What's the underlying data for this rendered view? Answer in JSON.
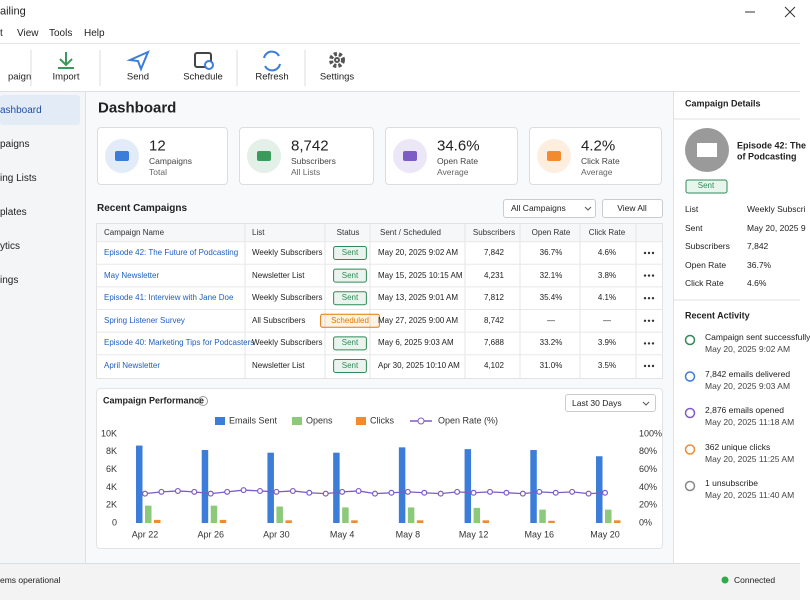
{
  "window": {
    "title": "ailing"
  },
  "menu": [
    "t",
    "View",
    "Tools",
    "Help"
  ],
  "toolbar": [
    "paign",
    "Import",
    "Send",
    "Schedule",
    "Refresh",
    "Settings"
  ],
  "sidebar": [
    "ashboard",
    "paigns",
    "ing Lists",
    "plates",
    "ytics",
    "ings"
  ],
  "dashboard": {
    "title": "Dashboard",
    "cards": [
      {
        "value": "12",
        "label": "Campaigns",
        "sub": "Total",
        "color": "#3b7dd8"
      },
      {
        "value": "8,742",
        "label": "Subscribers",
        "sub": "All Lists",
        "color": "#3a9a5b"
      },
      {
        "value": "34.6%",
        "label": "Open Rate",
        "sub": "Average",
        "color": "#7d5cc6"
      },
      {
        "value": "4.2%",
        "label": "Click Rate",
        "sub": "Average",
        "color": "#f28a30"
      }
    ]
  },
  "recent": {
    "title": "Recent Campaigns",
    "filter": "All Campaigns",
    "view_all": "View All",
    "columns": [
      "Campaign Name",
      "List",
      "Status",
      "Sent / Scheduled",
      "Subscribers",
      "Open Rate",
      "Click Rate"
    ],
    "rows": [
      {
        "cells": [
          "Episode 42: The Future of Podcasting",
          "Weekly Subscribers",
          "Sent",
          "May 20, 2025 9:02 AM",
          "7,842",
          "36.7%",
          "4.6%"
        ],
        "status_color": "#2e8b57"
      },
      {
        "cells": [
          "May Newsletter",
          "Newsletter List",
          "Sent",
          "May 15, 2025 10:15 AM",
          "4,231",
          "32.1%",
          "3.8%"
        ],
        "status_color": "#2e8b57"
      },
      {
        "cells": [
          "Episode 41: Interview with Jane Doe",
          "Weekly Subscribers",
          "Sent",
          "May 13, 2025 9:01 AM",
          "7,812",
          "35.4%",
          "4.1%"
        ],
        "status_color": "#2e8b57"
      },
      {
        "cells": [
          "Spring Listener Survey",
          "All Subscribers",
          "Scheduled",
          "May 27, 2025 9:00 AM",
          "8,742",
          "—",
          "—"
        ],
        "status_color": "#e07b00"
      },
      {
        "cells": [
          "Episode 40: Marketing Tips for Podcasters",
          "Weekly Subscribers",
          "Sent",
          "May 6, 2025 9:03 AM",
          "7,688",
          "33.2%",
          "3.9%"
        ],
        "status_color": "#2e8b57"
      },
      {
        "cells": [
          "April Newsletter",
          "Newsletter List",
          "Sent",
          "Apr 30, 2025 10:10 AM",
          "4,102",
          "31.0%",
          "3.5%"
        ],
        "status_color": "#2e8b57"
      }
    ]
  },
  "chart_controls": {
    "range": "Last 30 Days"
  },
  "chart_data": {
    "type": "bar",
    "title": "Campaign Performance",
    "categories": [
      "Apr 22",
      null,
      null,
      null,
      "Apr 26",
      null,
      null,
      null,
      "Apr 30",
      null,
      null,
      null,
      "May 4",
      null,
      null,
      null,
      "May 8",
      null,
      null,
      null,
      "May 12",
      null,
      null,
      null,
      "May 16",
      null,
      null,
      null,
      "May 20"
    ],
    "series": [
      {
        "name": "Emails Sent",
        "color": "#3b7dd8",
        "values": [
          8700,
          null,
          null,
          null,
          8200,
          null,
          null,
          null,
          7900,
          null,
          null,
          null,
          7900,
          null,
          null,
          null,
          8500,
          null,
          null,
          null,
          8300,
          null,
          null,
          null,
          8200,
          null,
          null,
          null,
          7500
        ]
      },
      {
        "name": "Opens",
        "color": "#8cc97a",
        "values": [
          1950,
          null,
          null,
          null,
          1950,
          null,
          null,
          null,
          1850,
          null,
          null,
          null,
          1750,
          null,
          null,
          null,
          1750,
          null,
          null,
          null,
          1700,
          null,
          null,
          null,
          1500,
          null,
          null,
          null,
          1500
        ]
      },
      {
        "name": "Clicks",
        "color": "#f28a30",
        "values": [
          350,
          null,
          null,
          null,
          350,
          null,
          null,
          null,
          300,
          null,
          null,
          null,
          300,
          null,
          null,
          null,
          300,
          null,
          null,
          null,
          300,
          null,
          null,
          null,
          250,
          null,
          null,
          null,
          300
        ]
      },
      {
        "name": "Open Rate (%)",
        "color": "#7d5cc6",
        "type": "line",
        "axis": "y2",
        "values": [
          33,
          35,
          36,
          35,
          33,
          35,
          37,
          36,
          35,
          36,
          34,
          33,
          35,
          36,
          33,
          34,
          35,
          34,
          33,
          35,
          34,
          35,
          34,
          33,
          35,
          34,
          35,
          33,
          34
        ]
      }
    ],
    "ylim": [
      0,
      10000
    ],
    "yticks": [
      0,
      {
        "value": 2000,
        "label": "2K"
      },
      {
        "value": 4000,
        "label": "4K"
      },
      {
        "value": 6000,
        "label": "6K"
      },
      {
        "value": 8000,
        "label": "8K"
      },
      {
        "value": 10000,
        "label": "10K"
      }
    ],
    "y2lim": [
      0,
      100
    ],
    "y2ticks": [
      {
        "value": 0,
        "label": "0%"
      },
      {
        "value": 20,
        "label": "20%"
      },
      {
        "value": 40,
        "label": "40%"
      },
      {
        "value": 60,
        "label": "60%"
      },
      {
        "value": 80,
        "label": "80%"
      },
      {
        "value": 100,
        "label": "100%"
      }
    ],
    "grid": false,
    "legend": "top"
  },
  "details": {
    "title": "Campaign Details",
    "name_lines": [
      "Episode 42: The",
      "of Podcasting"
    ],
    "status": "Sent",
    "rows": [
      [
        "List",
        "Weekly Subscri"
      ],
      [
        "Sent",
        "May 20, 2025 9"
      ],
      [
        "Subscribers",
        "7,842"
      ],
      [
        "Open Rate",
        "36.7%"
      ],
      [
        "Click Rate",
        "4.6%"
      ]
    ]
  },
  "activity": {
    "title": "Recent Activity",
    "items": [
      {
        "text": "Campaign sent successfully",
        "time": "May 20, 2025 9:02 AM",
        "color": "#2e8b57"
      },
      {
        "text": "7,842 emails delivered",
        "time": "May 20, 2025 9:03 AM",
        "color": "#3b7dd8"
      },
      {
        "text": "2,876 emails opened",
        "time": "May 20, 2025 11:18 AM",
        "color": "#7d5cc6"
      },
      {
        "text": "362 unique clicks",
        "time": "May 20, 2025 11:25 AM",
        "color": "#f28a30"
      },
      {
        "text": "1 unsubscribe",
        "time": "May 20, 2025 11:40 AM",
        "color": "#888888"
      }
    ]
  },
  "status": {
    "left": "ems operational",
    "right": "Connected"
  }
}
